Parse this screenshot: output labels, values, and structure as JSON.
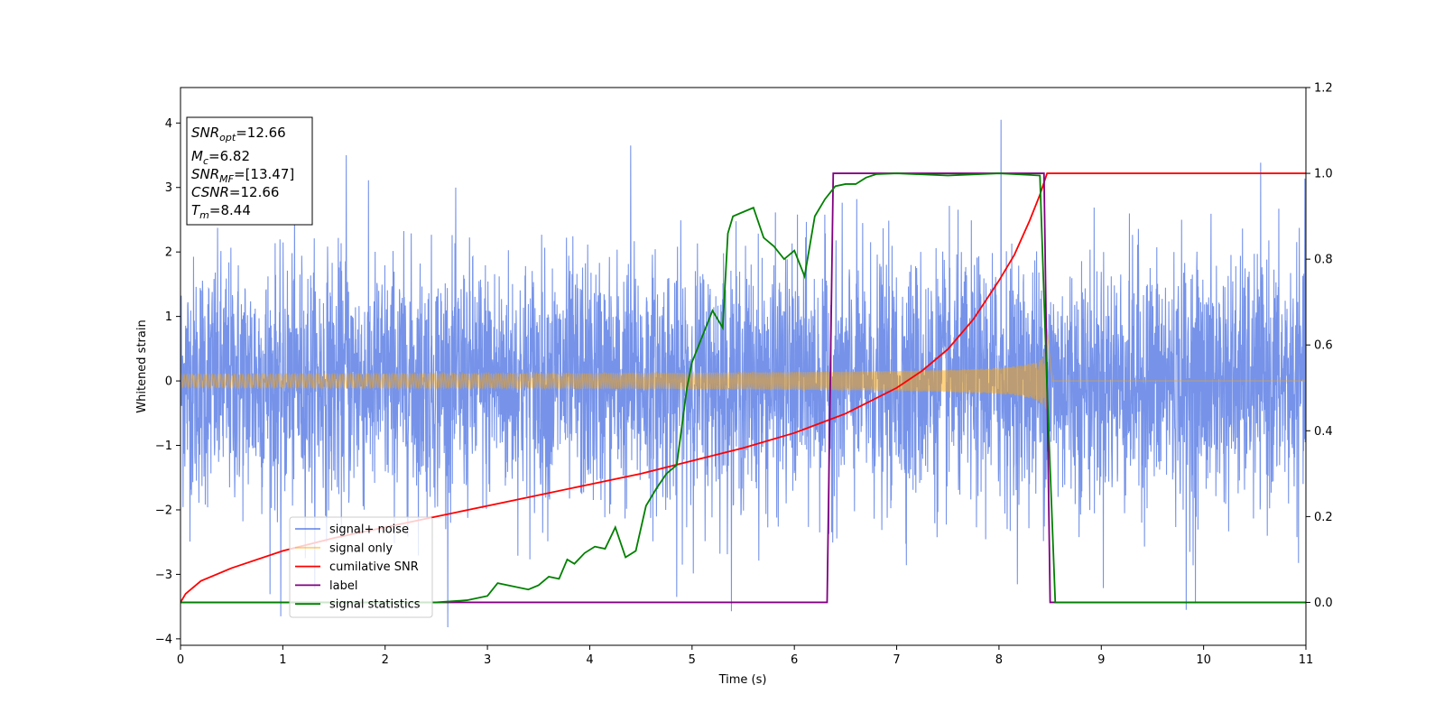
{
  "chart_data": {
    "type": "line",
    "xlabel": "Time (s)",
    "ylabel": "Whitened strain",
    "xlim": [
      0,
      11
    ],
    "ylim_left": [
      -4.1,
      4.55
    ],
    "ylim_right": [
      -0.1,
      1.2
    ],
    "x_ticks": [
      0,
      1,
      2,
      3,
      4,
      5,
      6,
      7,
      8,
      9,
      10,
      11
    ],
    "y_ticks_left": [
      -4,
      -3,
      -2,
      -1,
      0,
      1,
      2,
      3,
      4
    ],
    "y_ticks_right": [
      0.0,
      0.2,
      0.4,
      0.6,
      0.8,
      1.0,
      1.2
    ],
    "info_box": [
      {
        "main": "SNR",
        "sub": "opt",
        "rest": "=12.66"
      },
      {
        "main": "M",
        "sub": "c",
        "rest": "=6.82"
      },
      {
        "main": "SNR",
        "sub": "MF",
        "rest": "=[13.47]"
      },
      {
        "main": "CSNR",
        "sub": "",
        "rest": "=12.66"
      },
      {
        "main": "T",
        "sub": "m",
        "rest": "=8.44"
      }
    ],
    "legend_position": "lower-left",
    "series": [
      {
        "name": "signal+ noise",
        "color": "#4169E1",
        "axis": "left",
        "description_values": {
          "noise_std": 0.95,
          "spikes": [
            [
              0.98,
              -3.65
            ],
            [
              1.62,
              3.5
            ],
            [
              4.4,
              3.65
            ],
            [
              4.85,
              -3.35
            ],
            [
              8.02,
              4.05
            ],
            [
              9.83,
              -3.55
            ],
            [
              9.92,
              -3.45
            ]
          ]
        }
      },
      {
        "name": "signal only",
        "color": "#FFA500",
        "axis": "left",
        "chirp": {
          "t_merge": 8.47,
          "amp_start": 0.1,
          "amp_end": 0.9
        }
      },
      {
        "name": "cumilative SNR",
        "color": "#FF0000",
        "axis": "right",
        "x": [
          0,
          0.05,
          0.2,
          0.5,
          1,
          1.5,
          2,
          2.5,
          3,
          3.5,
          4,
          4.5,
          5,
          5.5,
          6,
          6.5,
          7,
          7.25,
          7.5,
          7.75,
          8,
          8.15,
          8.3,
          8.4,
          8.47,
          11
        ],
        "values": [
          0.0,
          0.02,
          0.05,
          0.08,
          0.12,
          0.15,
          0.175,
          0.2,
          0.225,
          0.25,
          0.275,
          0.3,
          0.33,
          0.36,
          0.395,
          0.44,
          0.5,
          0.54,
          0.59,
          0.66,
          0.75,
          0.81,
          0.89,
          0.95,
          1.0,
          1.0
        ]
      },
      {
        "name": "label",
        "color": "#800080",
        "axis": "right",
        "x": [
          0,
          6.32,
          6.38,
          8.44,
          8.5,
          11
        ],
        "values": [
          0,
          0,
          1,
          1,
          0,
          0
        ]
      },
      {
        "name": "signal statistics",
        "color": "#008000",
        "axis": "right",
        "x": [
          0,
          2.5,
          2.8,
          3.0,
          3.1,
          3.2,
          3.4,
          3.5,
          3.6,
          3.7,
          3.78,
          3.85,
          3.95,
          4.05,
          4.15,
          4.25,
          4.35,
          4.45,
          4.55,
          4.65,
          4.75,
          4.85,
          4.95,
          5.0,
          5.1,
          5.2,
          5.3,
          5.35,
          5.4,
          5.5,
          5.6,
          5.7,
          5.8,
          5.9,
          6.0,
          6.1,
          6.2,
          6.3,
          6.4,
          6.5,
          6.6,
          6.7,
          6.8,
          7.0,
          7.5,
          8.0,
          8.4,
          8.47,
          8.55,
          11
        ],
        "values": [
          0.0,
          0.0,
          0.005,
          0.015,
          0.045,
          0.04,
          0.03,
          0.04,
          0.06,
          0.055,
          0.1,
          0.09,
          0.115,
          0.13,
          0.125,
          0.175,
          0.105,
          0.12,
          0.225,
          0.265,
          0.3,
          0.32,
          0.5,
          0.56,
          0.62,
          0.68,
          0.64,
          0.86,
          0.9,
          0.91,
          0.92,
          0.85,
          0.83,
          0.8,
          0.82,
          0.76,
          0.9,
          0.94,
          0.97,
          0.975,
          0.975,
          0.99,
          0.998,
          1.0,
          0.995,
          1.0,
          0.995,
          0.5,
          0.0,
          0.0
        ]
      }
    ]
  }
}
